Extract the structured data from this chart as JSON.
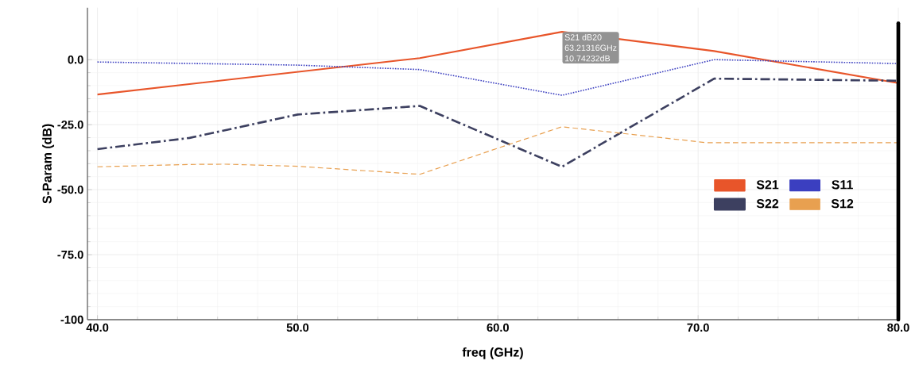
{
  "chart_data": {
    "type": "line",
    "xlabel": "freq (GHz)",
    "ylabel": "S-Param (dB)",
    "xlim": [
      39.5,
      80
    ],
    "ylim": [
      -100,
      20
    ],
    "xticks": [
      {
        "value": 40,
        "label": "40.0"
      },
      {
        "value": 50,
        "label": "50.0"
      },
      {
        "value": 60,
        "label": "60.0"
      },
      {
        "value": 70,
        "label": "70.0"
      },
      {
        "value": 80,
        "label": "80.0"
      }
    ],
    "yticks": [
      {
        "value": 0,
        "label": "0.0"
      },
      {
        "value": -25,
        "label": "-25.0"
      },
      {
        "value": -50,
        "label": "-50.0"
      },
      {
        "value": -75,
        "label": "-75.0"
      },
      -100
    ],
    "grid": true,
    "legend": "center right",
    "marker": "none",
    "series": [
      {
        "name": "S21",
        "color": "#e8552a",
        "line_style": "solid",
        "x": [
          40,
          56.1,
          63.2,
          70.8,
          80
        ],
        "values": [
          -13.4,
          0.6,
          10.7,
          3.3,
          -9
        ]
      },
      {
        "name": "S11",
        "color": "#3b3fc0",
        "line_style": "dotted",
        "x": [
          40,
          50,
          56.1,
          63.2,
          70.8,
          80
        ],
        "values": [
          -0.9,
          -2.1,
          -3.8,
          -13.7,
          0,
          -1.5
        ]
      },
      {
        "name": "S22",
        "color": "#3d4060",
        "line_style": "dashdot",
        "x": [
          40,
          44.6,
          50,
          56.1,
          63.2,
          70.8,
          80
        ],
        "values": [
          -34.4,
          -30.1,
          -21.1,
          -17.8,
          -41.2,
          -7.3,
          -8.1
        ]
      },
      {
        "name": "S12",
        "color": "#e8a050",
        "line_style": "dashed",
        "x": [
          40,
          44.6,
          46.4,
          50,
          56.1,
          63.2,
          70.4,
          80
        ],
        "values": [
          -41.2,
          -40.3,
          -40.2,
          -41,
          -44.1,
          -25.8,
          -31.9,
          -31.9
        ]
      }
    ],
    "ref_lines": [
      {
        "axis": "x",
        "value": 80,
        "color": "#000000",
        "line_style": "solid"
      }
    ],
    "annotations": [
      {
        "text": "S21 dB20",
        "x": 63.21316,
        "y": 10.74232
      },
      "63.21316GHz",
      "10.74232dB"
    ]
  }
}
